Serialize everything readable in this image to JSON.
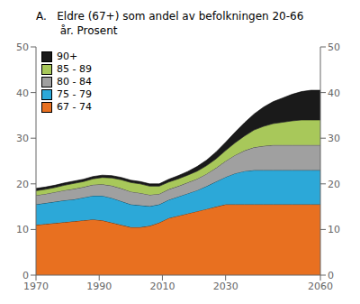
{
  "chart_data": {
    "type": "area",
    "title": "A.   Eldre (67+) som andel av befolkningen 20-66\n       år. Prosent",
    "stacked": true,
    "x": [
      1970,
      1973,
      1976,
      1979,
      1982,
      1985,
      1988,
      1991,
      1994,
      1997,
      2000,
      2003,
      2006,
      2009,
      2012,
      2015,
      2018,
      2021,
      2024,
      2027,
      2030,
      2033,
      2036,
      2039,
      2042,
      2045,
      2048,
      2051,
      2054,
      2057,
      2060
    ],
    "series": [
      {
        "name": "67 - 74",
        "color": "#E87020",
        "values": [
          11.0,
          11.2,
          11.4,
          11.6,
          11.8,
          12.0,
          12.2,
          12.0,
          11.5,
          11.0,
          10.5,
          10.5,
          10.8,
          11.5,
          12.5,
          13.0,
          13.5,
          14.0,
          14.5,
          15.0,
          15.5,
          15.5,
          15.5,
          15.5,
          15.5,
          15.5,
          15.5,
          15.5,
          15.5,
          15.5,
          15.5
        ]
      },
      {
        "name": "75 - 79",
        "color": "#2CA8D8",
        "values": [
          4.5,
          4.6,
          4.7,
          4.8,
          4.8,
          5.0,
          5.2,
          5.4,
          5.4,
          5.2,
          5.0,
          4.8,
          4.3,
          4.0,
          4.0,
          4.2,
          4.4,
          4.6,
          5.0,
          5.5,
          6.0,
          6.8,
          7.3,
          7.5,
          7.5,
          7.5,
          7.5,
          7.5,
          7.5,
          7.5,
          7.5
        ]
      },
      {
        "name": "80 - 84",
        "color": "#A0A0A0",
        "values": [
          2.0,
          2.0,
          2.1,
          2.2,
          2.3,
          2.3,
          2.4,
          2.5,
          2.7,
          2.8,
          2.8,
          2.7,
          2.5,
          2.3,
          2.3,
          2.3,
          2.4,
          2.5,
          2.7,
          3.0,
          3.5,
          4.0,
          4.5,
          5.0,
          5.3,
          5.5,
          5.5,
          5.5,
          5.5,
          5.5,
          5.5
        ]
      },
      {
        "name": "85 - 89",
        "color": "#A8C85A",
        "values": [
          1.0,
          1.0,
          1.0,
          1.1,
          1.2,
          1.2,
          1.3,
          1.5,
          1.7,
          1.9,
          2.0,
          2.0,
          1.9,
          1.7,
          1.6,
          1.6,
          1.6,
          1.7,
          1.8,
          2.0,
          2.3,
          2.7,
          3.2,
          3.8,
          4.3,
          4.7,
          5.0,
          5.3,
          5.5,
          5.5,
          5.5
        ]
      },
      {
        "name": "90+",
        "color": "#1A1A1A",
        "values": [
          0.5,
          0.5,
          0.5,
          0.5,
          0.5,
          0.5,
          0.5,
          0.5,
          0.5,
          0.5,
          0.5,
          0.5,
          0.5,
          0.5,
          0.6,
          0.7,
          0.8,
          1.0,
          1.2,
          1.5,
          1.8,
          2.3,
          2.9,
          3.5,
          4.2,
          4.8,
          5.3,
          5.8,
          6.2,
          6.5,
          6.5
        ]
      }
    ],
    "xlim": [
      1970,
      2060
    ],
    "xticks": [
      1970,
      1990,
      2010,
      2030,
      2060
    ],
    "ylim": [
      0,
      50
    ],
    "yticks": [
      0,
      10,
      20,
      30,
      40,
      50
    ],
    "y2lim": [
      0,
      50
    ],
    "y2ticks": [
      0,
      10,
      20,
      30,
      40,
      50
    ],
    "legend": "upper left",
    "grid": false
  }
}
